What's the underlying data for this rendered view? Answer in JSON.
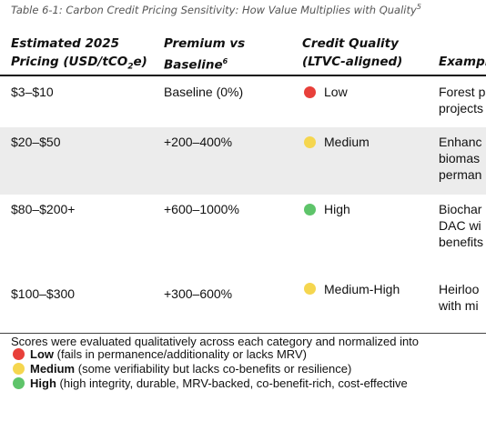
{
  "caption": {
    "text": "Table 6-1: Carbon Credit Pricing Sensitivity: How Value Multiplies with Quality",
    "note": "5"
  },
  "headers": {
    "pricing": {
      "line1": "Estimated 2025",
      "line2_pre": "Pricing (USD/tCO",
      "line2_sub": "2",
      "line2_post": "e)"
    },
    "premium": {
      "line1": "Premium vs",
      "line2": "Baseline",
      "note": "6"
    },
    "quality": {
      "line1": "Credit Quality",
      "line2": "(LTVC-aligned)"
    },
    "examples": {
      "line2": "Exampl"
    }
  },
  "rows": [
    {
      "price": "$3–$10",
      "premium": "Baseline (0%)",
      "quality": "Low",
      "dot_color": "#e8403a",
      "example": [
        "Forest p",
        "projects"
      ]
    },
    {
      "price": "$20–$50",
      "premium": "+200–400%",
      "quality": "Medium",
      "dot_color": "#f5d64f",
      "example": [
        "Enhanc",
        "biomas",
        "perman"
      ]
    },
    {
      "price": "$80–$200+",
      "premium": "+600–1000%",
      "quality": "High",
      "dot_color": "#5ec46a",
      "example": [
        "Biochar",
        "DAC wi",
        "benefits"
      ]
    },
    {
      "price": "$100–$300",
      "premium": "+300–600%",
      "quality": "Medium-High",
      "dot_color": "#f5d64f",
      "example": [
        "Heirloo",
        "with mi"
      ]
    }
  ],
  "summary": {
    "intro": "Scores were evaluated qualitatively across each category and normalized into",
    "legend": [
      {
        "label": "Low",
        "desc": "(fails in permanence/additionality or lacks MRV)",
        "color": "#e8403a"
      },
      {
        "label": "Medium",
        "desc": "(some verifiability but lacks co-benefits or resilience)",
        "color": "#f5d64f"
      },
      {
        "label": "High",
        "desc": "(high integrity, durable, MRV-backed, co-benefit-rich, cost-effective",
        "color": "#5ec46a"
      }
    ]
  }
}
